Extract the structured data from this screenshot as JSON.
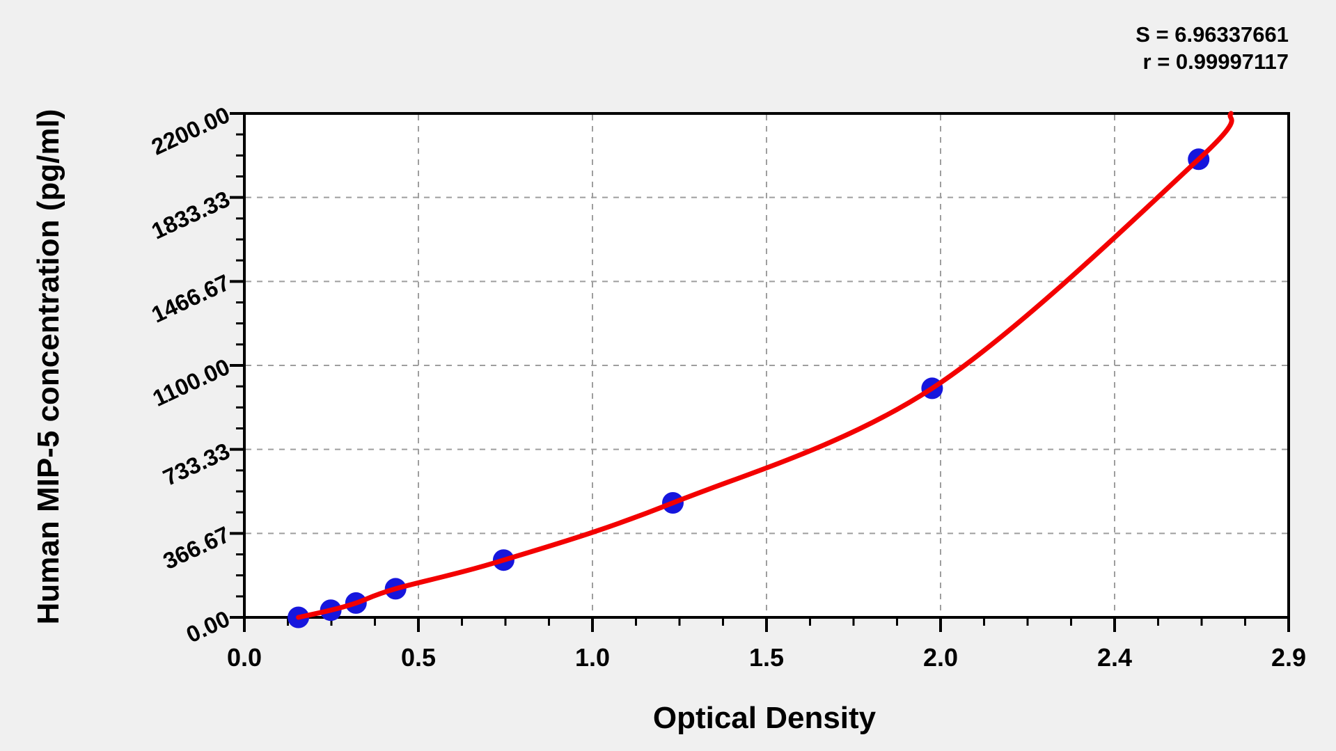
{
  "chart_data": {
    "type": "scatter",
    "title": "",
    "xlabel": "Optical Density",
    "ylabel": "Human MIP-5 concentration (pg/ml)",
    "x_tick_labels": [
      "0.0",
      "0.5",
      "1.0",
      "1.5",
      "2.0",
      "2.4",
      "2.9"
    ],
    "y_tick_labels": [
      "0.00",
      "366.67",
      "733.33",
      "1100.00",
      "1466.67",
      "1833.33",
      "2200.00"
    ],
    "x_axis_value_range": [
      0.02,
      2.92
    ],
    "y_axis_value_range": [
      0,
      2200
    ],
    "minor_ticks_between_majors": 3,
    "grid": {
      "style": "dashed",
      "at": "major-ticks",
      "legend_position": "none"
    },
    "points": [
      {
        "od": 0.17,
        "conc": 0
      },
      {
        "od": 0.26,
        "conc": 31.25
      },
      {
        "od": 0.33,
        "conc": 62.5
      },
      {
        "od": 0.44,
        "conc": 125
      },
      {
        "od": 0.74,
        "conc": 250
      },
      {
        "od": 1.21,
        "conc": 500
      },
      {
        "od": 1.93,
        "conc": 1000
      },
      {
        "od": 2.67,
        "conc": 2000
      }
    ],
    "curve_extends_to": {
      "od": 2.76,
      "conc": 2200
    },
    "annotations": {
      "s_line": "S = 6.96337661",
      "r_line": "r = 0.99997117"
    },
    "colors": {
      "point": "#1616dd",
      "curve": "#f30000",
      "grid": "#9e9e9e",
      "axis": "#000000",
      "plot_bg": "#ffffff",
      "page_bg": "#f0f0f0"
    }
  }
}
